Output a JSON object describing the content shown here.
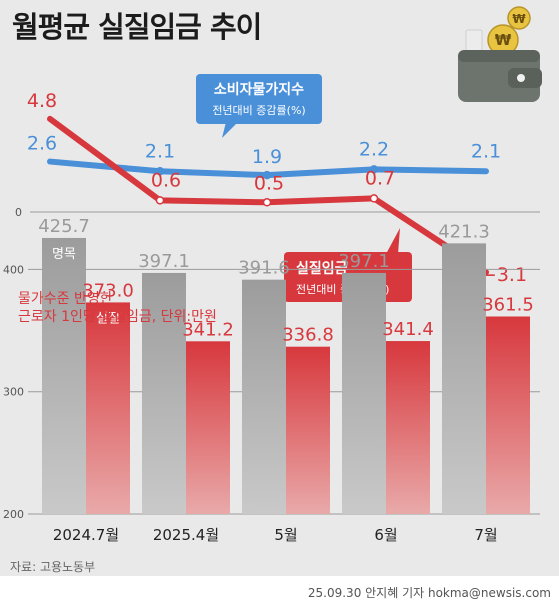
{
  "title": "월평균 실질임금 추이",
  "source": "자료: 고용노동부",
  "credit": "25.09.30 안지혜 기자 hokma@newsis.com",
  "note_line1": "물가수준 반영한",
  "note_line2": "근로자 1인당 실질임금, 단위:만원",
  "colors": {
    "cpi": "#4a90d9",
    "real_wage": "#d7383d",
    "nominal_bar": "#a3a3a3",
    "real_bar": "#d7383d",
    "background": "#e9e9e9"
  },
  "icon": "wallet-with-won-coins-icon",
  "chart_data": [
    {
      "type": "line",
      "categories": [
        "2024.7월",
        "2025.4월",
        "5월",
        "6월",
        "7월"
      ],
      "series": [
        {
          "name": "소비자물가지수",
          "subtitle": "전년대비 증감률(%)",
          "values": [
            2.6,
            2.1,
            1.9,
            2.2,
            2.1
          ]
        },
        {
          "name": "실질임금",
          "subtitle": "전년대비 증감률(%)",
          "values": [
            4.8,
            0.6,
            0.5,
            0.7,
            -3.1
          ]
        }
      ],
      "yticks": [
        "0"
      ]
    },
    {
      "type": "bar",
      "categories": [
        "2024.7월",
        "2025.4월",
        "5월",
        "6월",
        "7월"
      ],
      "series": [
        {
          "name": "명목",
          "values": [
            425.7,
            397.1,
            391.6,
            397.1,
            421.3
          ],
          "labels": [
            "425.7",
            "397.1",
            "391.6",
            "397.1",
            "421.3"
          ]
        },
        {
          "name": "실질",
          "values": [
            373.0,
            341.2,
            336.8,
            341.4,
            361.5
          ],
          "labels": [
            "373.0",
            "341.2",
            "336.8",
            "341.4",
            "361.5"
          ]
        }
      ],
      "yticks": [
        "400",
        "300",
        "200"
      ],
      "ylim": [
        200,
        450
      ]
    }
  ]
}
